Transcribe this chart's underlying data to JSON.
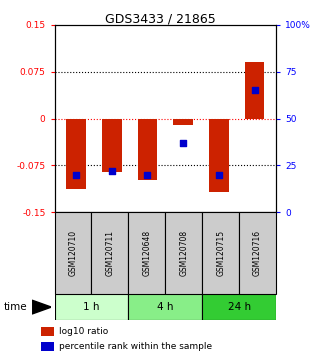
{
  "title": "GDS3433 / 21865",
  "samples": [
    "GSM120710",
    "GSM120711",
    "GSM120648",
    "GSM120708",
    "GSM120715",
    "GSM120716"
  ],
  "log10_ratio": [
    -0.112,
    -0.086,
    -0.098,
    -0.01,
    -0.118,
    0.09
  ],
  "percentile_rank": [
    20,
    22,
    20,
    37,
    20,
    65
  ],
  "bar_color": "#cc2200",
  "dot_color": "#0000cc",
  "ylim_left": [
    -0.15,
    0.15
  ],
  "ylim_right": [
    0,
    100
  ],
  "yticks_left": [
    -0.15,
    -0.075,
    0,
    0.075,
    0.15
  ],
  "ytick_labels_left": [
    "-0.15",
    "-0.075",
    "0",
    "0.075",
    "0.15"
  ],
  "yticks_right": [
    0,
    25,
    50,
    75,
    100
  ],
  "ytick_labels_right": [
    "0",
    "25",
    "50",
    "75",
    "100%"
  ],
  "hline_black": [
    0.075,
    -0.075
  ],
  "hline_red": [
    0
  ],
  "groups": [
    {
      "label": "1 h",
      "indices": [
        0,
        1
      ],
      "color": "#ccffcc"
    },
    {
      "label": "4 h",
      "indices": [
        2,
        3
      ],
      "color": "#88ee88"
    },
    {
      "label": "24 h",
      "indices": [
        4,
        5
      ],
      "color": "#33cc33"
    }
  ],
  "time_label": "time",
  "legend_items": [
    {
      "color": "#cc2200",
      "label": "log10 ratio"
    },
    {
      "color": "#0000cc",
      "label": "percentile rank within the sample"
    }
  ],
  "bar_width": 0.55,
  "dot_size": 18,
  "background_color": "#ffffff",
  "sample_box_color": "#cccccc",
  "chart_left_tick_color": "red",
  "chart_right_tick_color": "blue"
}
